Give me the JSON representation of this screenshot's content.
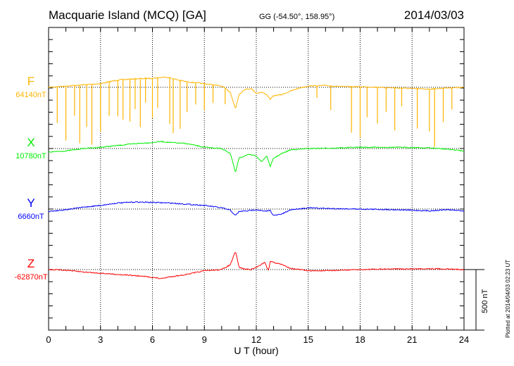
{
  "chart_data": {
    "type": "line",
    "title": "Macquarie Island (MCQ)  [GA]",
    "coords": "GG (-54.50°, 158.95°)",
    "date": "2014/03/03",
    "xlabel": "U T (hour)",
    "xlim": [
      0,
      24
    ],
    "xticks": [
      "0",
      "3",
      "6",
      "9",
      "12",
      "15",
      "18",
      "21",
      "24"
    ],
    "scale_label": "500 nT",
    "scale_nT": 500,
    "footer": "Plotted at 2014/04/03 02:23 UT",
    "grid": true,
    "series": [
      {
        "name": "F",
        "baseline": "64140nT",
        "color": "#ffb400",
        "x": [
          0,
          1,
          2,
          3,
          4,
          5,
          6,
          6.8,
          7.5,
          8,
          9,
          10,
          10.5,
          10.8,
          11,
          11.3,
          11.7,
          12,
          12.3,
          12.6,
          12.8,
          13,
          13.5,
          14,
          14.5,
          15,
          16,
          17,
          18,
          19,
          20,
          21,
          22,
          23,
          24
        ],
        "y": [
          0,
          10,
          20,
          30,
          60,
          70,
          75,
          85,
          60,
          45,
          30,
          10,
          -40,
          -180,
          -60,
          -20,
          -10,
          -50,
          -40,
          -60,
          -100,
          -70,
          -60,
          -30,
          -5,
          10,
          15,
          5,
          5,
          0,
          -5,
          -10,
          -15,
          -5,
          0
        ],
        "spikes_x": [
          0.5,
          1,
          1.5,
          1.8,
          2.2,
          2.5,
          3,
          3.5,
          4,
          4.3,
          4.7,
          5,
          5.3,
          5.6,
          6,
          6.3,
          7,
          7.2,
          7.6,
          8,
          8.5,
          9,
          9.5,
          10.2,
          15.5,
          16.3,
          17.5,
          18,
          18.4,
          19,
          19.5,
          20,
          20.4,
          21.3,
          22,
          22.3,
          22.8,
          23.3
        ],
        "spikes_depth": [
          300,
          450,
          250,
          480,
          350,
          500,
          400,
          280,
          300,
          330,
          350,
          250,
          400,
          200,
          330,
          250,
          380,
          450,
          400,
          250,
          180,
          220,
          150,
          130,
          100,
          200,
          380,
          420,
          250,
          300,
          200,
          350,
          150,
          330,
          350,
          480,
          280,
          180
        ]
      },
      {
        "name": "X",
        "baseline": "10780nT",
        "color": "#00ee00",
        "x": [
          0,
          1,
          2,
          3,
          4,
          5,
          6,
          6.5,
          7,
          8,
          9,
          10,
          10.5,
          10.8,
          11,
          11.5,
          12,
          12.3,
          12.6,
          12.8,
          13,
          13.5,
          14,
          15,
          16,
          18,
          20,
          21,
          22,
          23,
          24
        ],
        "y": [
          -30,
          -20,
          0,
          10,
          25,
          40,
          50,
          58,
          50,
          40,
          10,
          0,
          -40,
          -200,
          -80,
          -50,
          -60,
          -110,
          -60,
          -150,
          -80,
          -40,
          -10,
          0,
          2,
          10,
          10,
          8,
          5,
          -5,
          -20
        ]
      },
      {
        "name": "Y",
        "baseline": "6660nT",
        "color": "#0000ff",
        "x": [
          0,
          1,
          2,
          3,
          4,
          5,
          6,
          7,
          8,
          9,
          10,
          10.5,
          10.8,
          11,
          11.5,
          12,
          12.5,
          12.8,
          13,
          13.5,
          14,
          15,
          16,
          18,
          20,
          21,
          22,
          23,
          24
        ],
        "y": [
          -20,
          -5,
          15,
          30,
          50,
          58,
          55,
          50,
          40,
          30,
          10,
          -10,
          -55,
          -20,
          -15,
          -5,
          -20,
          -10,
          -55,
          -40,
          -5,
          10,
          5,
          0,
          -5,
          -10,
          -15,
          -5,
          -15
        ]
      },
      {
        "name": "Z",
        "baseline": "-62870nT",
        "color": "#ff0000",
        "x": [
          0,
          1,
          2,
          3,
          4,
          5,
          6,
          6.5,
          7,
          8,
          9,
          10,
          10.5,
          10.8,
          11,
          11.3,
          11.7,
          12,
          12.5,
          12.7,
          12.8,
          13,
          13.5,
          14,
          15,
          16,
          18,
          20,
          21,
          22,
          23,
          24
        ],
        "y": [
          0,
          -5,
          -20,
          -30,
          -40,
          -50,
          -64,
          -75,
          -60,
          -40,
          -10,
          0,
          40,
          150,
          20,
          5,
          0,
          20,
          60,
          -10,
          70,
          60,
          40,
          10,
          -10,
          -10,
          0,
          5,
          5,
          8,
          5,
          0
        ]
      }
    ]
  }
}
